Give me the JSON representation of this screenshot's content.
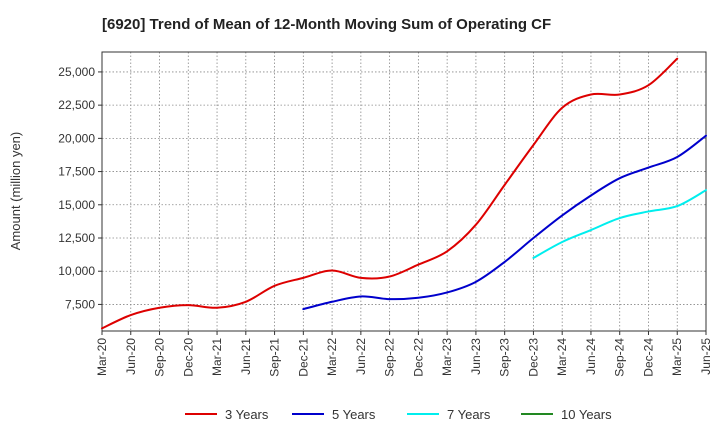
{
  "chart_data": {
    "type": "line",
    "title": "[6920]  Trend of Mean of 12-Month Moving Sum of Operating CF",
    "xlabel": "",
    "ylabel": "Amount (million yen)",
    "ylim": [
      5500,
      26500
    ],
    "yticks": [
      7500,
      10000,
      12500,
      15000,
      17500,
      20000,
      22500,
      25000
    ],
    "ytick_labels": [
      "7,500",
      "10,000",
      "12,500",
      "15,000",
      "17,500",
      "20,000",
      "22,500",
      "25,000"
    ],
    "x_categories": [
      "Mar-20",
      "Jun-20",
      "Sep-20",
      "Dec-20",
      "Mar-21",
      "Jun-21",
      "Sep-21",
      "Dec-21",
      "Mar-22",
      "Jun-22",
      "Sep-22",
      "Dec-22",
      "Mar-23",
      "Jun-23",
      "Sep-23",
      "Dec-23",
      "Mar-24",
      "Jun-24",
      "Sep-24",
      "Dec-24",
      "Mar-25",
      "Jun-25"
    ],
    "grid": true,
    "legend_position": "bottom",
    "series": [
      {
        "name": "3 Years",
        "color": "#dd0000",
        "start_index": 0,
        "values": [
          5700,
          6700,
          7250,
          7450,
          7250,
          7700,
          8900,
          9500,
          10050,
          9500,
          9600,
          10500,
          11500,
          13500,
          16500,
          19500,
          22300,
          23300,
          23300,
          24000,
          26000
        ]
      },
      {
        "name": "5 Years",
        "color": "#0000cc",
        "start_index": 7,
        "values": [
          7150,
          7700,
          8100,
          7900,
          8000,
          8400,
          9200,
          10700,
          12500,
          14200,
          15700,
          17000,
          17800,
          18600,
          20200
        ]
      },
      {
        "name": "7 Years",
        "color": "#00eeee",
        "start_index": 15,
        "values": [
          11000,
          12200,
          13100,
          14000,
          14500,
          14900,
          16100
        ]
      },
      {
        "name": "10 Years",
        "color": "#228822",
        "start_index": 20,
        "values": []
      }
    ]
  }
}
